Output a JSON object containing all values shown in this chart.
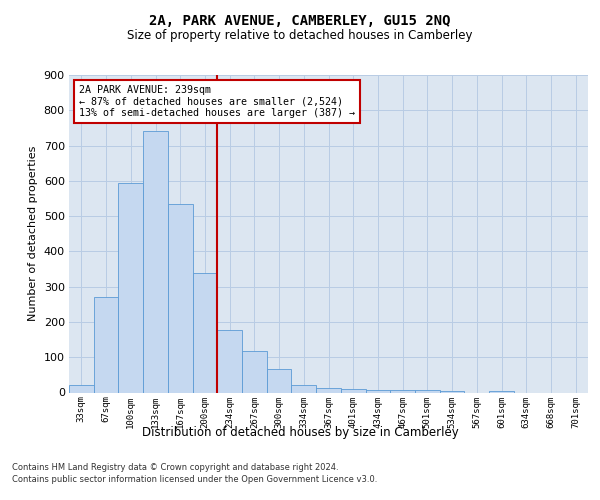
{
  "title": "2A, PARK AVENUE, CAMBERLEY, GU15 2NQ",
  "subtitle": "Size of property relative to detached houses in Camberley",
  "xlabel": "Distribution of detached houses by size in Camberley",
  "ylabel": "Number of detached properties",
  "bin_labels": [
    "33sqm",
    "67sqm",
    "100sqm",
    "133sqm",
    "167sqm",
    "200sqm",
    "234sqm",
    "267sqm",
    "300sqm",
    "334sqm",
    "367sqm",
    "401sqm",
    "434sqm",
    "467sqm",
    "501sqm",
    "534sqm",
    "567sqm",
    "601sqm",
    "634sqm",
    "668sqm",
    "701sqm"
  ],
  "bar_values": [
    20,
    270,
    595,
    740,
    535,
    340,
    178,
    118,
    68,
    22,
    12,
    10,
    7,
    8,
    7,
    5,
    0,
    5,
    0,
    0,
    0
  ],
  "bar_color": "#c5d8f0",
  "bar_edge_color": "#5b9bd5",
  "grid_color": "#b8cce4",
  "background_color": "#dce6f1",
  "vline_color": "#c00000",
  "vline_index": 5.5,
  "annotation_line1": "2A PARK AVENUE: 239sqm",
  "annotation_line2": "← 87% of detached houses are smaller (2,524)",
  "annotation_line3": "13% of semi-detached houses are larger (387) →",
  "ylim_max": 900,
  "yticks": [
    0,
    100,
    200,
    300,
    400,
    500,
    600,
    700,
    800,
    900
  ],
  "footer_line1": "Contains HM Land Registry data © Crown copyright and database right 2024.",
  "footer_line2": "Contains public sector information licensed under the Open Government Licence v3.0."
}
